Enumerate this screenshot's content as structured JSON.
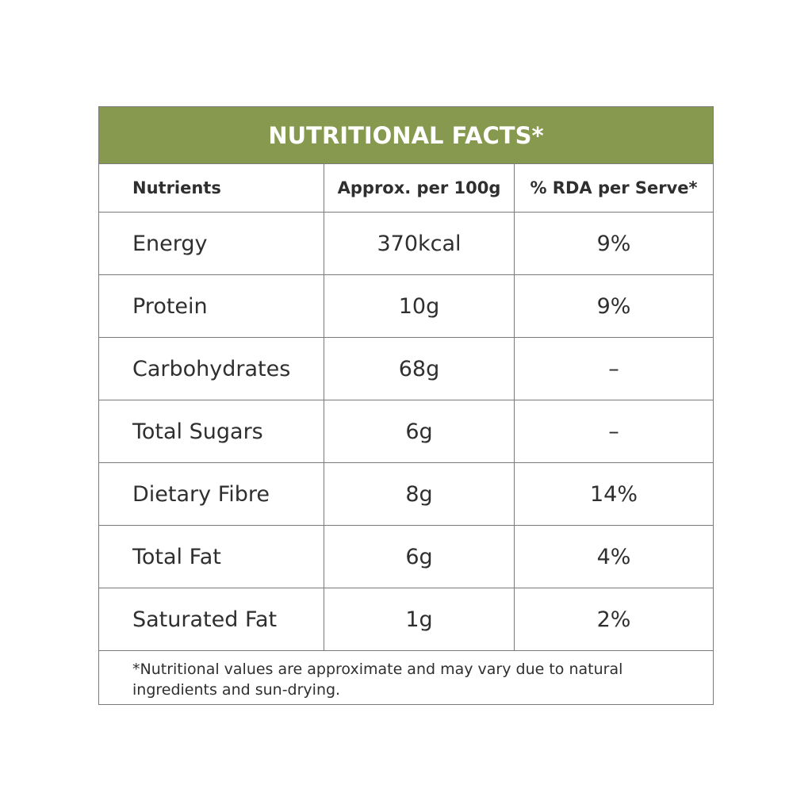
{
  "table": {
    "title": "NUTRITIONAL FACTS*",
    "headers": [
      "Nutrients",
      "Approx. per 100g",
      "% RDA per Serve*"
    ],
    "rows": [
      [
        "Energy",
        "370kcal",
        "9%"
      ],
      [
        "Protein",
        "10g",
        "9%"
      ],
      [
        "Carbohydrates",
        "68g",
        "–"
      ],
      [
        "Total Sugars",
        "6g",
        "–"
      ],
      [
        "Dietary Fibre",
        "8g",
        "14%"
      ],
      [
        "Total Fat",
        "6g",
        "4%"
      ],
      [
        "Saturated Fat",
        "1g",
        "2%"
      ]
    ],
    "footnote": "*Nutritional values are approximate and may vary due to natural ingredients and sun-drying."
  }
}
